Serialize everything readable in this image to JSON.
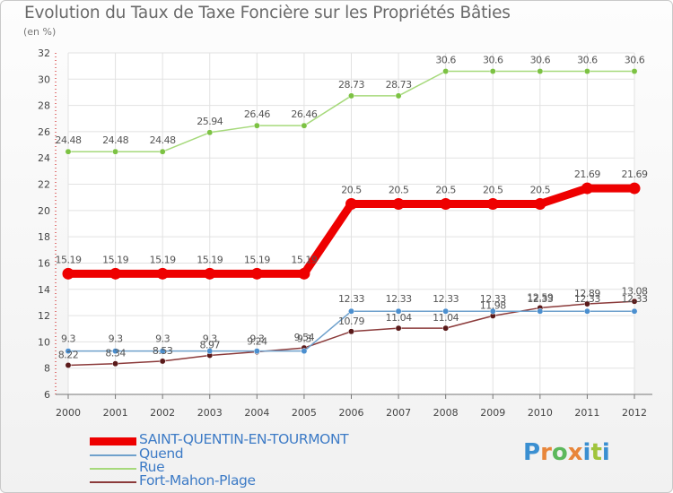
{
  "title": "Evolution du Taux de Taxe Foncière sur les Propriétés Bâties",
  "subtitle": "(en %)",
  "logo": {
    "text": "Proxiti",
    "letters": [
      "P",
      "r",
      "o",
      "x",
      "i",
      "t",
      "i"
    ],
    "colors": [
      "#3a8fd1",
      "#e8863a",
      "#5cb85c",
      "#e8863a",
      "#3a8fd1",
      "#a0c43c",
      "#3a8fd1"
    ]
  },
  "chart_data": {
    "type": "line",
    "title": "Evolution du Taux de Taxe Foncière sur les Propriétés Bâties",
    "ylabel": "(en %)",
    "xlabel": "",
    "x": [
      "2000",
      "2001",
      "2002",
      "2003",
      "2004",
      "2005",
      "2006",
      "2007",
      "2008",
      "2009",
      "2010",
      "2011",
      "2012"
    ],
    "ylim": [
      6,
      32
    ],
    "yticks": [
      6,
      8,
      10,
      12,
      14,
      16,
      18,
      20,
      22,
      24,
      26,
      28,
      30,
      32
    ],
    "grid": true,
    "legend_position": "bottom",
    "series": [
      {
        "name": "SAINT-QUENTIN-EN-TOURMONT",
        "color": "#ee0000",
        "width": 9,
        "values": [
          15.19,
          15.19,
          15.19,
          15.19,
          15.19,
          15.19,
          20.5,
          20.5,
          20.5,
          20.5,
          20.5,
          21.69,
          21.69
        ],
        "labels": [
          "15.19",
          "15.19",
          "15.19",
          "15.19",
          "15.19",
          "15.19",
          "20.5",
          "20.5",
          "20.5",
          "20.5",
          "20.5",
          "21.69",
          "21.69"
        ]
      },
      {
        "name": "Quend",
        "color": "#6fa1cc",
        "width": 1.5,
        "marker": "#4b8fcf",
        "values": [
          9.3,
          9.3,
          9.3,
          9.3,
          9.3,
          9.3,
          12.33,
          12.33,
          12.33,
          12.33,
          12.33,
          12.33,
          12.33
        ],
        "labels": [
          "9.3",
          "9.3",
          "9.3",
          "9.3",
          "9.3",
          "9.3",
          "12.33",
          "12.33",
          "12.33",
          "12.33",
          "12.33",
          "12.33",
          "12.33"
        ]
      },
      {
        "name": "Rue",
        "color": "#a6d97b",
        "width": 1.5,
        "marker": "#7cc243",
        "values": [
          24.48,
          24.48,
          24.48,
          25.94,
          26.46,
          26.46,
          28.73,
          28.73,
          30.6,
          30.6,
          30.6,
          30.6,
          30.6
        ],
        "labels": [
          "24.48",
          "24.48",
          "24.48",
          "25.94",
          "26.46",
          "26.46",
          "28.73",
          "28.73",
          "30.6",
          "30.6",
          "30.6",
          "30.6",
          "30.6"
        ]
      },
      {
        "name": "Fort-Mahon-Plage",
        "color": "#8b3a3a",
        "width": 1.5,
        "marker": "#5a1a1a",
        "values": [
          8.22,
          8.34,
          8.53,
          8.97,
          9.24,
          9.54,
          10.79,
          11.04,
          11.04,
          11.98,
          12.59,
          12.89,
          13.08
        ],
        "labels": [
          "8.22",
          "8.34",
          "8.53",
          "8.97",
          "9.24",
          "9.54",
          "10.79",
          "11.04",
          "11.04",
          "11.98",
          "12.59",
          "12.89",
          "13.08"
        ]
      }
    ]
  }
}
